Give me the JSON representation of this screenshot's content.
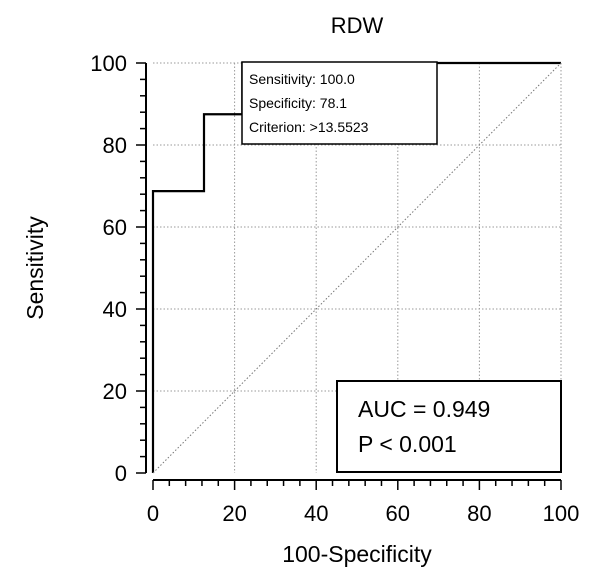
{
  "chart_data": {
    "type": "line",
    "title": "RDW",
    "xlabel": "100-Specificity",
    "ylabel": "Sensitivity",
    "xlim": [
      0,
      100
    ],
    "ylim": [
      0,
      100
    ],
    "xticks": [
      0,
      20,
      40,
      60,
      80,
      100
    ],
    "yticks": [
      0,
      20,
      40,
      60,
      80,
      100
    ],
    "grid": true,
    "series": [
      {
        "style": "solid",
        "color": "#000000",
        "x": [
          0,
          0,
          12.5,
          12.5,
          21.9,
          21.9,
          100
        ],
        "y": [
          0,
          68.75,
          68.75,
          87.5,
          87.5,
          100,
          100
        ]
      },
      {
        "style": "dotted",
        "color": "#777777",
        "x": [
          0,
          100
        ],
        "y": [
          0,
          100
        ]
      }
    ],
    "annotation_box": {
      "lines": [
        "Sensitivity: 100.0",
        "Specificity: 78.1",
        "Criterion: >13.5523"
      ]
    },
    "stats_box": {
      "lines": [
        "AUC = 0.949",
        "P < 0.001"
      ]
    }
  }
}
